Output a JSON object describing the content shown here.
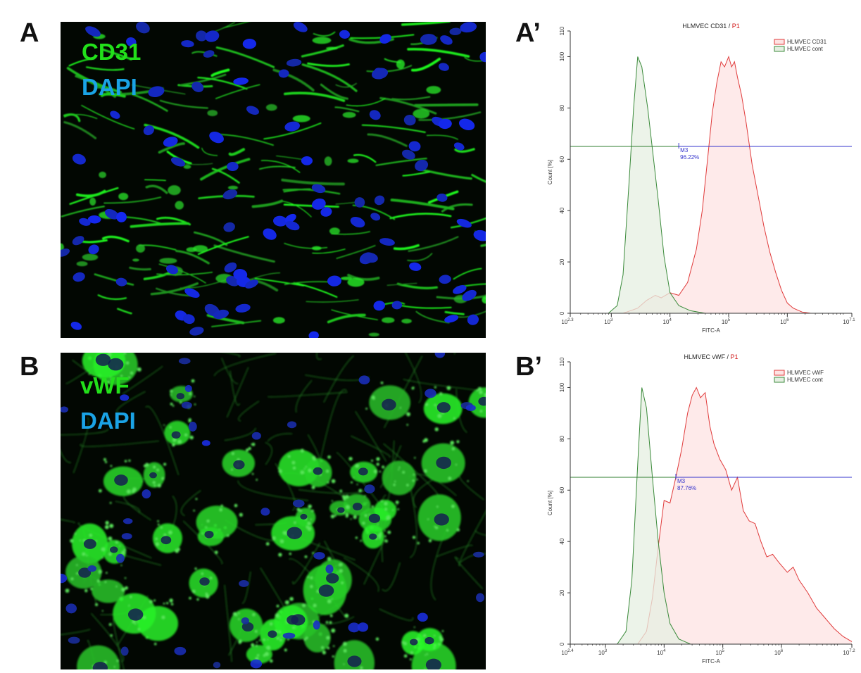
{
  "figure": {
    "panelA": {
      "letter": "A",
      "stain": "CD31",
      "counter": "DAPI",
      "stain_color": "#22e01a",
      "counter_color": "#1aa3e6"
    },
    "panelB": {
      "letter": "B",
      "stain": "vWF",
      "counter": "DAPI",
      "stain_color": "#22e01a",
      "counter_color": "#1aa3e6"
    },
    "panelA2": {
      "letter": "A’"
    },
    "panelB2": {
      "letter": "B’"
    }
  },
  "chart_data": [
    {
      "type": "area",
      "title_black": "HLMVEC CD31 / ",
      "title_red": "P1",
      "xlabel": "FITC-A",
      "ylabel": "Count [%]",
      "x_scale": "log10",
      "xlim": [
        2.3,
        7.1
      ],
      "ylim": [
        0,
        110
      ],
      "x_ticks": [
        {
          "base": "10",
          "exp": "2.3",
          "v": 2.3
        },
        {
          "base": "10",
          "exp": "3",
          "v": 3
        },
        {
          "base": "10",
          "exp": "4",
          "v": 4
        },
        {
          "base": "10",
          "exp": "5",
          "v": 5
        },
        {
          "base": "10",
          "exp": "6",
          "v": 6
        },
        {
          "base": "10",
          "exp": "7.1",
          "v": 7.1
        }
      ],
      "y_ticks": [
        0,
        20,
        40,
        60,
        80,
        100,
        110
      ],
      "gate": {
        "name": "M3",
        "percent": "96.22%",
        "y": 65,
        "x_start": 4.15,
        "x_end": 7.1
      },
      "legend": [
        "HLMVEC CD31",
        "HLMVEC cont"
      ],
      "series": [
        {
          "name": "HLMVEC CD31",
          "color": "#e03a3a",
          "fill": "#fde3e3",
          "points": [
            [
              3.2,
              0
            ],
            [
              3.45,
              2
            ],
            [
              3.6,
              5
            ],
            [
              3.75,
              7
            ],
            [
              3.85,
              6
            ],
            [
              4.0,
              8
            ],
            [
              4.15,
              7
            ],
            [
              4.3,
              12
            ],
            [
              4.45,
              25
            ],
            [
              4.55,
              40
            ],
            [
              4.65,
              62
            ],
            [
              4.72,
              78
            ],
            [
              4.8,
              90
            ],
            [
              4.87,
              98
            ],
            [
              4.93,
              96
            ],
            [
              5.0,
              100
            ],
            [
              5.05,
              96
            ],
            [
              5.1,
              98
            ],
            [
              5.15,
              92
            ],
            [
              5.22,
              85
            ],
            [
              5.3,
              74
            ],
            [
              5.4,
              58
            ],
            [
              5.5,
              46
            ],
            [
              5.6,
              34
            ],
            [
              5.7,
              24
            ],
            [
              5.8,
              16
            ],
            [
              5.9,
              9
            ],
            [
              6.0,
              4
            ],
            [
              6.1,
              2
            ],
            [
              6.25,
              0.5
            ],
            [
              6.4,
              0
            ]
          ]
        },
        {
          "name": "HLMVEC cont",
          "color": "#3a8a3a",
          "fill": "#e5efe2",
          "points": [
            [
              2.95,
              0
            ],
            [
              3.1,
              3
            ],
            [
              3.2,
              15
            ],
            [
              3.3,
              50
            ],
            [
              3.38,
              80
            ],
            [
              3.45,
              100
            ],
            [
              3.52,
              96
            ],
            [
              3.62,
              80
            ],
            [
              3.7,
              64
            ],
            [
              3.8,
              44
            ],
            [
              3.9,
              22
            ],
            [
              4.0,
              8
            ],
            [
              4.15,
              3
            ],
            [
              4.35,
              1
            ],
            [
              4.6,
              0
            ]
          ]
        }
      ]
    },
    {
      "type": "area",
      "title_black": "HLMVEC vWF / ",
      "title_red": "P1",
      "xlabel": "FITC-A",
      "ylabel": "Count [%]",
      "x_scale": "log10",
      "xlim": [
        2.4,
        7.2
      ],
      "ylim": [
        0,
        110
      ],
      "x_ticks": [
        {
          "base": "10",
          "exp": "2.4",
          "v": 2.4
        },
        {
          "base": "10",
          "exp": "3",
          "v": 3
        },
        {
          "base": "10",
          "exp": "4",
          "v": 4
        },
        {
          "base": "10",
          "exp": "5",
          "v": 5
        },
        {
          "base": "10",
          "exp": "6",
          "v": 6
        },
        {
          "base": "10",
          "exp": "7.2",
          "v": 7.2
        }
      ],
      "y_ticks": [
        0,
        20,
        40,
        60,
        80,
        100,
        110
      ],
      "gate": {
        "name": "M3",
        "percent": "87.76%",
        "y": 65,
        "x_start": 4.2,
        "x_end": 7.2
      },
      "legend": [
        "HLMVEC vWF",
        "HLMVEC cont"
      ],
      "series": [
        {
          "name": "HLMVEC vWF",
          "color": "#e03a3a",
          "fill": "#fde3e3",
          "points": [
            [
              3.55,
              0
            ],
            [
              3.7,
              5
            ],
            [
              3.8,
              18
            ],
            [
              3.9,
              38
            ],
            [
              4.0,
              56
            ],
            [
              4.1,
              55
            ],
            [
              4.2,
              65
            ],
            [
              4.3,
              76
            ],
            [
              4.4,
              90
            ],
            [
              4.48,
              97
            ],
            [
              4.55,
              100
            ],
            [
              4.62,
              96
            ],
            [
              4.7,
              98
            ],
            [
              4.78,
              85
            ],
            [
              4.85,
              78
            ],
            [
              4.95,
              72
            ],
            [
              5.05,
              68
            ],
            [
              5.15,
              60
            ],
            [
              5.25,
              65
            ],
            [
              5.35,
              52
            ],
            [
              5.45,
              48
            ],
            [
              5.55,
              47
            ],
            [
              5.65,
              40
            ],
            [
              5.75,
              34
            ],
            [
              5.85,
              35
            ],
            [
              5.95,
              32
            ],
            [
              6.1,
              28
            ],
            [
              6.2,
              30
            ],
            [
              6.3,
              25
            ],
            [
              6.45,
              20
            ],
            [
              6.6,
              14
            ],
            [
              6.75,
              10
            ],
            [
              6.9,
              6
            ],
            [
              7.05,
              3
            ],
            [
              7.2,
              1
            ]
          ]
        },
        {
          "name": "HLMVEC cont",
          "color": "#3a8a3a",
          "fill": "#e5efe2",
          "points": [
            [
              3.2,
              0
            ],
            [
              3.35,
              5
            ],
            [
              3.45,
              25
            ],
            [
              3.55,
              70
            ],
            [
              3.62,
              100
            ],
            [
              3.7,
              92
            ],
            [
              3.8,
              65
            ],
            [
              3.9,
              40
            ],
            [
              4.0,
              20
            ],
            [
              4.1,
              8
            ],
            [
              4.25,
              2
            ],
            [
              4.45,
              0
            ]
          ]
        }
      ]
    }
  ]
}
